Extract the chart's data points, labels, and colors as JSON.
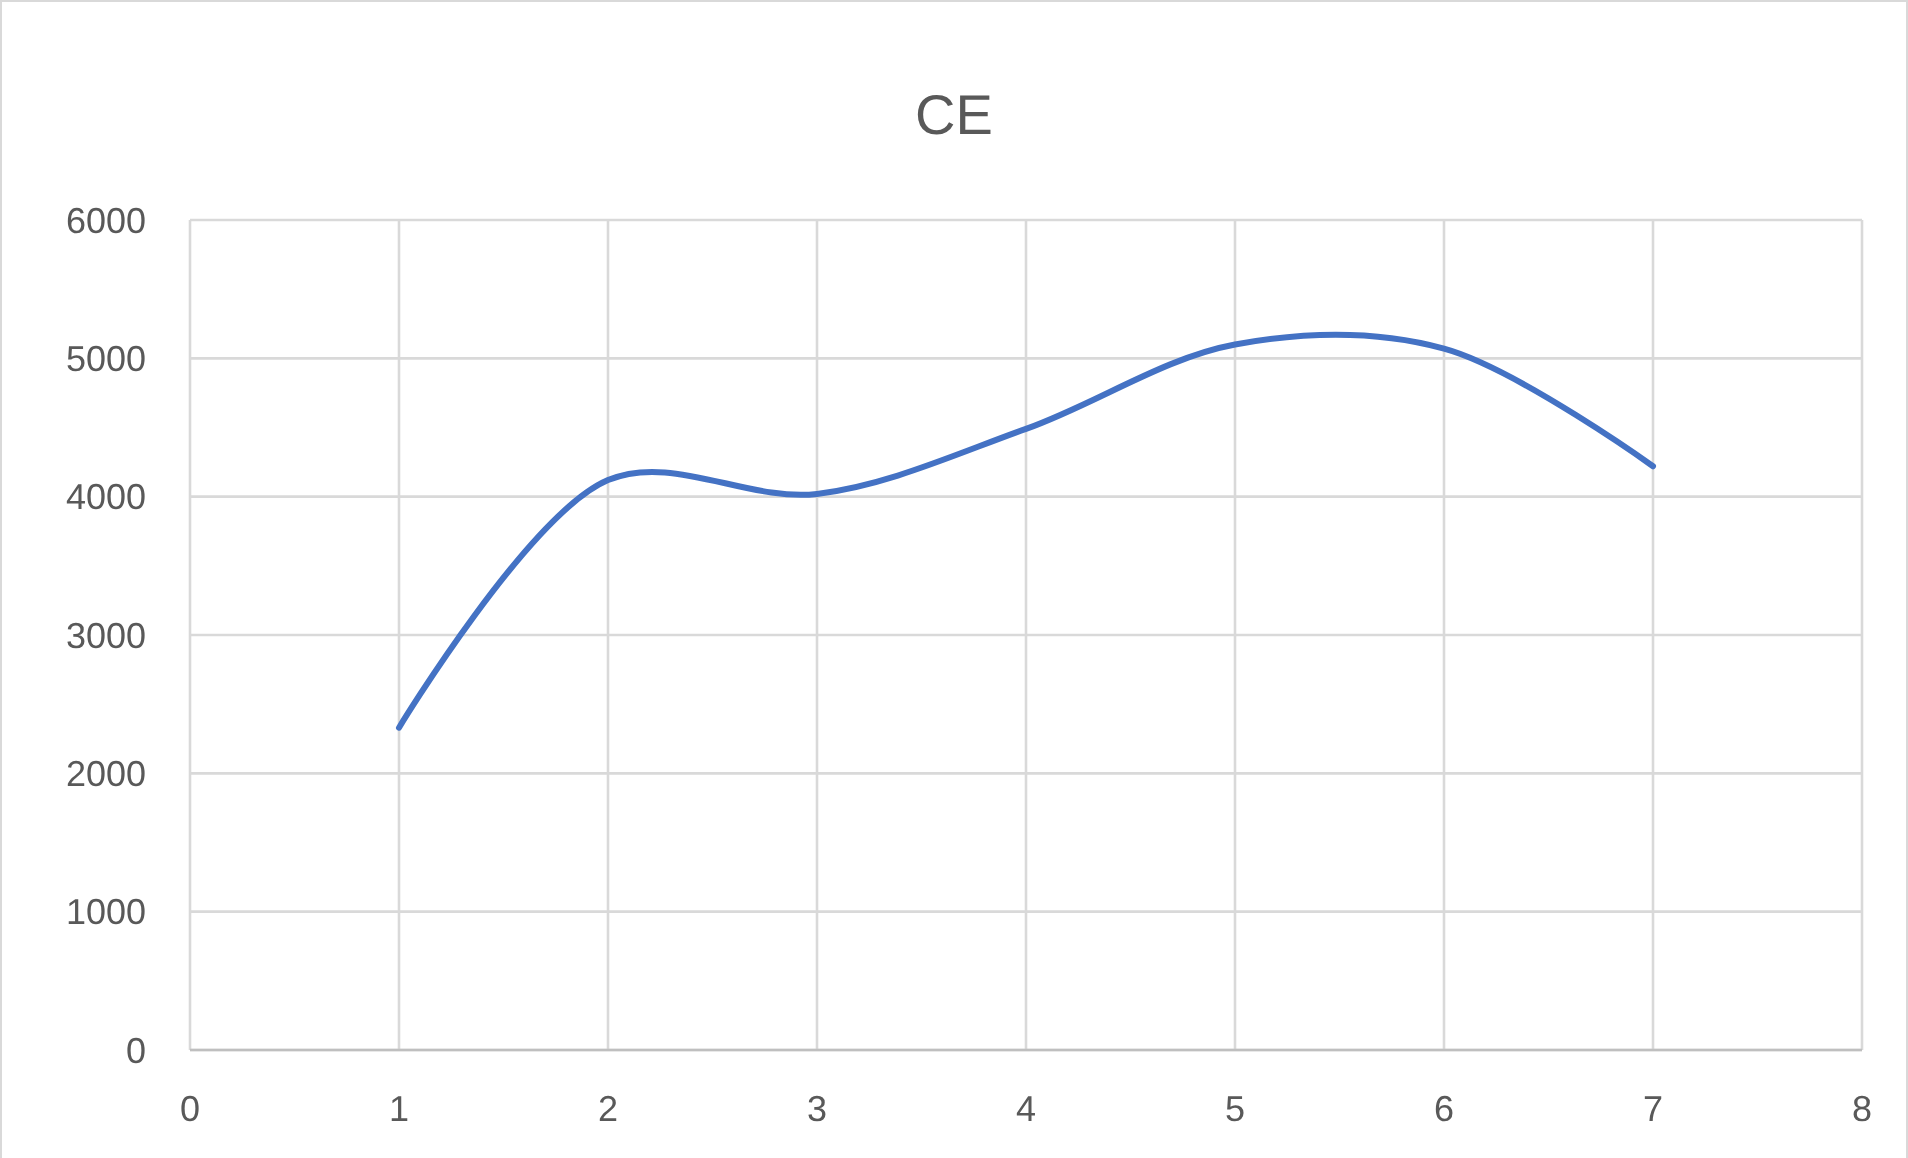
{
  "chart_data": {
    "type": "line",
    "title": "CE",
    "x": [
      1,
      2,
      3,
      4,
      5,
      6,
      7
    ],
    "series": [
      {
        "color": "#4472c4",
        "values": [
          2330,
          4120,
          4020,
          4490,
          5100,
          5070,
          4220
        ]
      }
    ],
    "xlim": [
      0,
      8
    ],
    "xticks": [
      0,
      1,
      2,
      3,
      4,
      5,
      6,
      7,
      8
    ],
    "ylim": [
      0,
      6000
    ],
    "yticks": [
      0,
      1000,
      2000,
      3000,
      4000,
      5000,
      6000
    ],
    "grid": true,
    "marker": "none",
    "line_style": "solid"
  }
}
